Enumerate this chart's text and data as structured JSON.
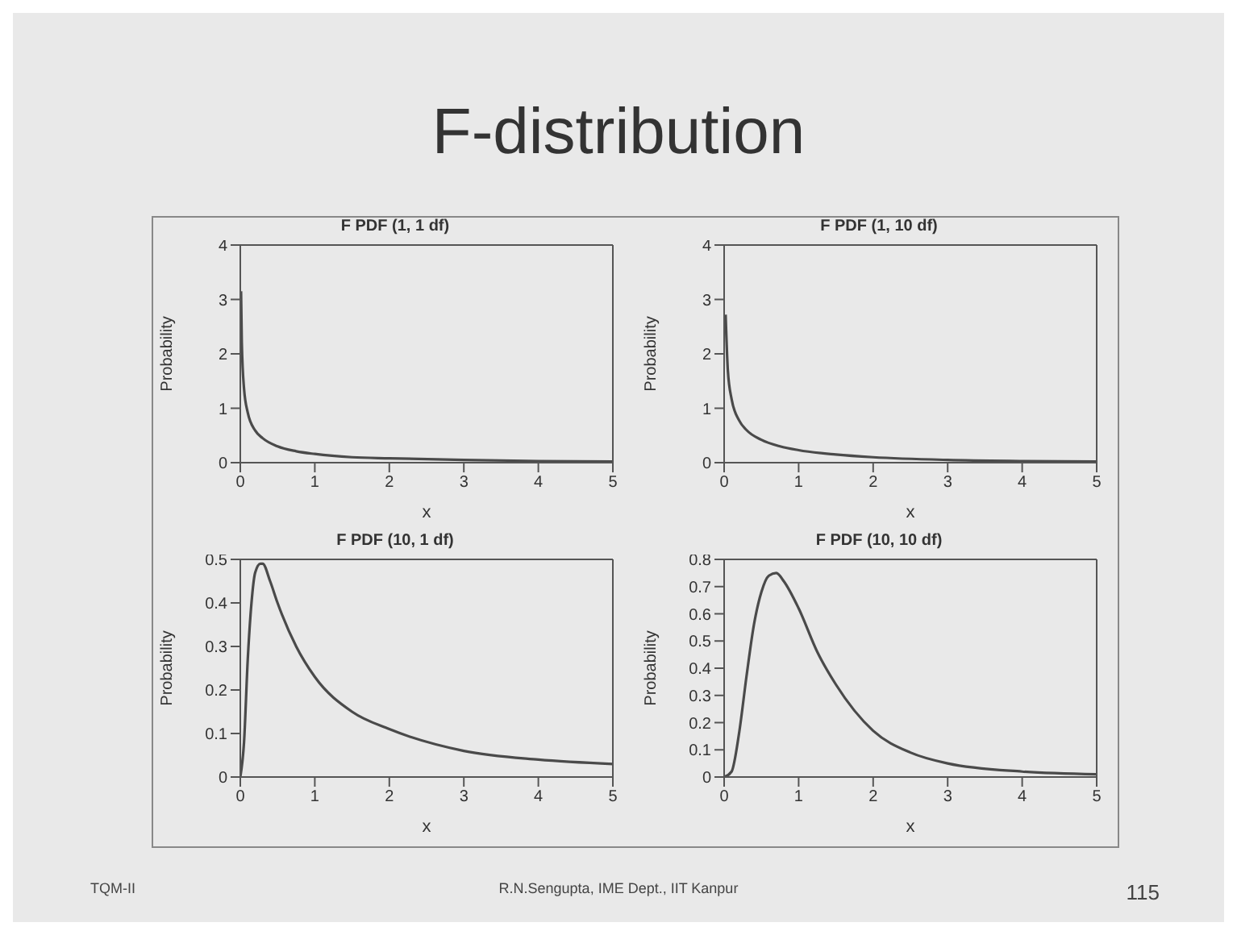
{
  "chart_data": [
    {
      "type": "other",
      "title": "F-distribution",
      "annotations": [
        "TQM-II",
        "R.N.Sengupta, IME Dept., IIT Kanpur",
        "115"
      ]
    },
    {
      "type": "line",
      "title": "F PDF (1, 1 df)",
      "xlabel": "x",
      "ylabel": "Probability",
      "color": "#4a4a4a",
      "marker": "none",
      "xlim": [
        0,
        5
      ],
      "xticks": [
        0,
        1,
        2,
        3,
        4,
        5
      ],
      "ylim": [
        0,
        4
      ],
      "yticks": [
        0,
        1,
        2,
        3,
        4
      ],
      "x": [
        0.01,
        0.02,
        0.05,
        0.1,
        0.2,
        0.3,
        0.5,
        0.75,
        1,
        1.5,
        2,
        3,
        4,
        5
      ],
      "values": [
        3.15,
        2.21,
        1.36,
        0.92,
        0.59,
        0.45,
        0.3,
        0.21,
        0.16,
        0.1,
        0.08,
        0.05,
        0.03,
        0.02
      ]
    },
    {
      "type": "line",
      "title": "F PDF (1, 10 df)",
      "xlabel": "x",
      "ylabel": "Probability",
      "color": "#4a4a4a",
      "marker": "none",
      "xlim": [
        0,
        5
      ],
      "xticks": [
        0,
        1,
        2,
        3,
        4,
        5
      ],
      "ylim": [
        0,
        4
      ],
      "yticks": [
        0,
        1,
        2,
        3,
        4
      ],
      "x": [
        0.02,
        0.05,
        0.1,
        0.2,
        0.3,
        0.5,
        0.75,
        1,
        1.5,
        2,
        3,
        4,
        5
      ],
      "values": [
        2.72,
        1.69,
        1.17,
        0.78,
        0.6,
        0.42,
        0.3,
        0.23,
        0.15,
        0.1,
        0.05,
        0.03,
        0.02
      ]
    },
    {
      "type": "line",
      "title": "F PDF (10, 1 df)",
      "xlabel": "x",
      "ylabel": "Probability",
      "color": "#4a4a4a",
      "marker": "none",
      "xlim": [
        0,
        5
      ],
      "xticks": [
        0,
        1,
        2,
        3,
        4,
        5
      ],
      "ylim": [
        0,
        0.5
      ],
      "yticks": [
        0,
        0.1,
        0.2,
        0.3,
        0.4,
        0.5
      ],
      "x": [
        0,
        0.05,
        0.1,
        0.15,
        0.2,
        0.27,
        0.3,
        0.4,
        0.5,
        0.75,
        1,
        1.5,
        2,
        3,
        4,
        5
      ],
      "values": [
        0,
        0.08,
        0.27,
        0.4,
        0.47,
        0.49,
        0.49,
        0.45,
        0.4,
        0.3,
        0.23,
        0.15,
        0.11,
        0.06,
        0.04,
        0.03
      ]
    },
    {
      "type": "line",
      "title": "F PDF (10, 10 df)",
      "xlabel": "x",
      "ylabel": "Probability",
      "color": "#4a4a4a",
      "marker": "none",
      "xlim": [
        0,
        5
      ],
      "xticks": [
        0,
        1,
        2,
        3,
        4,
        5
      ],
      "ylim": [
        0,
        0.8
      ],
      "yticks": [
        0,
        0.1,
        0.2,
        0.3,
        0.4,
        0.5,
        0.6,
        0.7,
        0.8
      ],
      "x": [
        0,
        0.1,
        0.2,
        0.3,
        0.4,
        0.5,
        0.6,
        0.7,
        0.8,
        1,
        1.25,
        1.5,
        2,
        2.5,
        3,
        4,
        5
      ],
      "values": [
        0,
        0.02,
        0.16,
        0.37,
        0.56,
        0.68,
        0.74,
        0.75,
        0.72,
        0.62,
        0.46,
        0.34,
        0.17,
        0.09,
        0.05,
        0.02,
        0.01
      ]
    }
  ]
}
